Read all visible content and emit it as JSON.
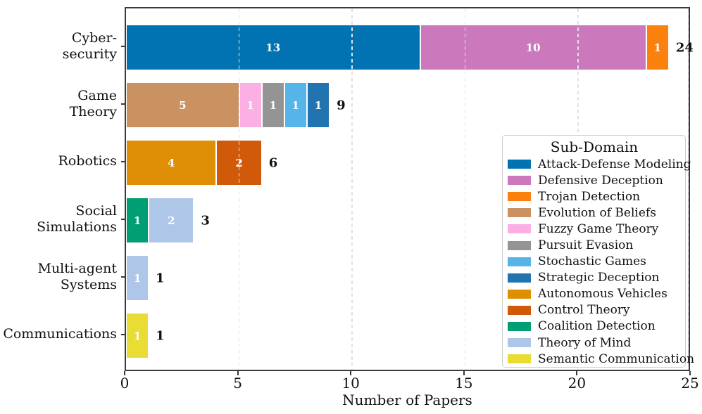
{
  "chart_data": {
    "type": "bar",
    "orientation": "horizontal-stacked",
    "title": "",
    "xlabel": "Number of Papers",
    "ylabel": "",
    "xlim": [
      0,
      25
    ],
    "xticks": [
      0,
      5,
      10,
      15,
      20,
      25
    ],
    "grid": "vertical-dashed-on-top",
    "legend_title": "Sub-Domain",
    "legend_position": "right",
    "subdomains": [
      {
        "name": "Attack-Defense Modeling",
        "color": "#0173b2"
      },
      {
        "name": "Defensive Deception",
        "color": "#cc78bc"
      },
      {
        "name": "Trojan Detection",
        "color": "#fb810e"
      },
      {
        "name": "Evolution of Beliefs",
        "color": "#ca9161"
      },
      {
        "name": "Fuzzy Game Theory",
        "color": "#fbafe4"
      },
      {
        "name": "Pursuit Evasion",
        "color": "#949494"
      },
      {
        "name": "Stochastic Games",
        "color": "#56b4e9"
      },
      {
        "name": "Strategic Deception",
        "color": "#2274b0"
      },
      {
        "name": "Autonomous Vehicles",
        "color": "#de8f05"
      },
      {
        "name": "Control Theory",
        "color": "#d0590a"
      },
      {
        "name": "Coalition Detection",
        "color": "#029e73"
      },
      {
        "name": "Theory of Mind",
        "color": "#aec7e8"
      },
      {
        "name": "Semantic Communication",
        "color": "#e8dc35"
      }
    ],
    "rows": [
      {
        "category_lines": [
          "Cyber-",
          "security"
        ],
        "total": 24,
        "segments": [
          {
            "subdomain": "Attack-Defense Modeling",
            "value": 13
          },
          {
            "subdomain": "Defensive Deception",
            "value": 10
          },
          {
            "subdomain": "Trojan Detection",
            "value": 1
          }
        ]
      },
      {
        "category_lines": [
          "Game",
          "Theory"
        ],
        "total": 9,
        "segments": [
          {
            "subdomain": "Evolution of Beliefs",
            "value": 5
          },
          {
            "subdomain": "Fuzzy Game Theory",
            "value": 1
          },
          {
            "subdomain": "Pursuit Evasion",
            "value": 1
          },
          {
            "subdomain": "Stochastic Games",
            "value": 1
          },
          {
            "subdomain": "Strategic Deception",
            "value": 1
          }
        ]
      },
      {
        "category_lines": [
          "Robotics"
        ],
        "total": 6,
        "segments": [
          {
            "subdomain": "Autonomous Vehicles",
            "value": 4
          },
          {
            "subdomain": "Control Theory",
            "value": 2
          }
        ]
      },
      {
        "category_lines": [
          "Social",
          "Simulations"
        ],
        "total": 3,
        "segments": [
          {
            "subdomain": "Coalition Detection",
            "value": 1
          },
          {
            "subdomain": "Theory of Mind",
            "value": 2
          }
        ]
      },
      {
        "category_lines": [
          "Multi-agent",
          "Systems"
        ],
        "total": 1,
        "segments": [
          {
            "subdomain": "Theory of Mind",
            "value": 1
          }
        ]
      },
      {
        "category_lines": [
          "Communications"
        ],
        "total": 1,
        "segments": [
          {
            "subdomain": "Semantic Communication",
            "value": 1
          }
        ]
      }
    ]
  }
}
